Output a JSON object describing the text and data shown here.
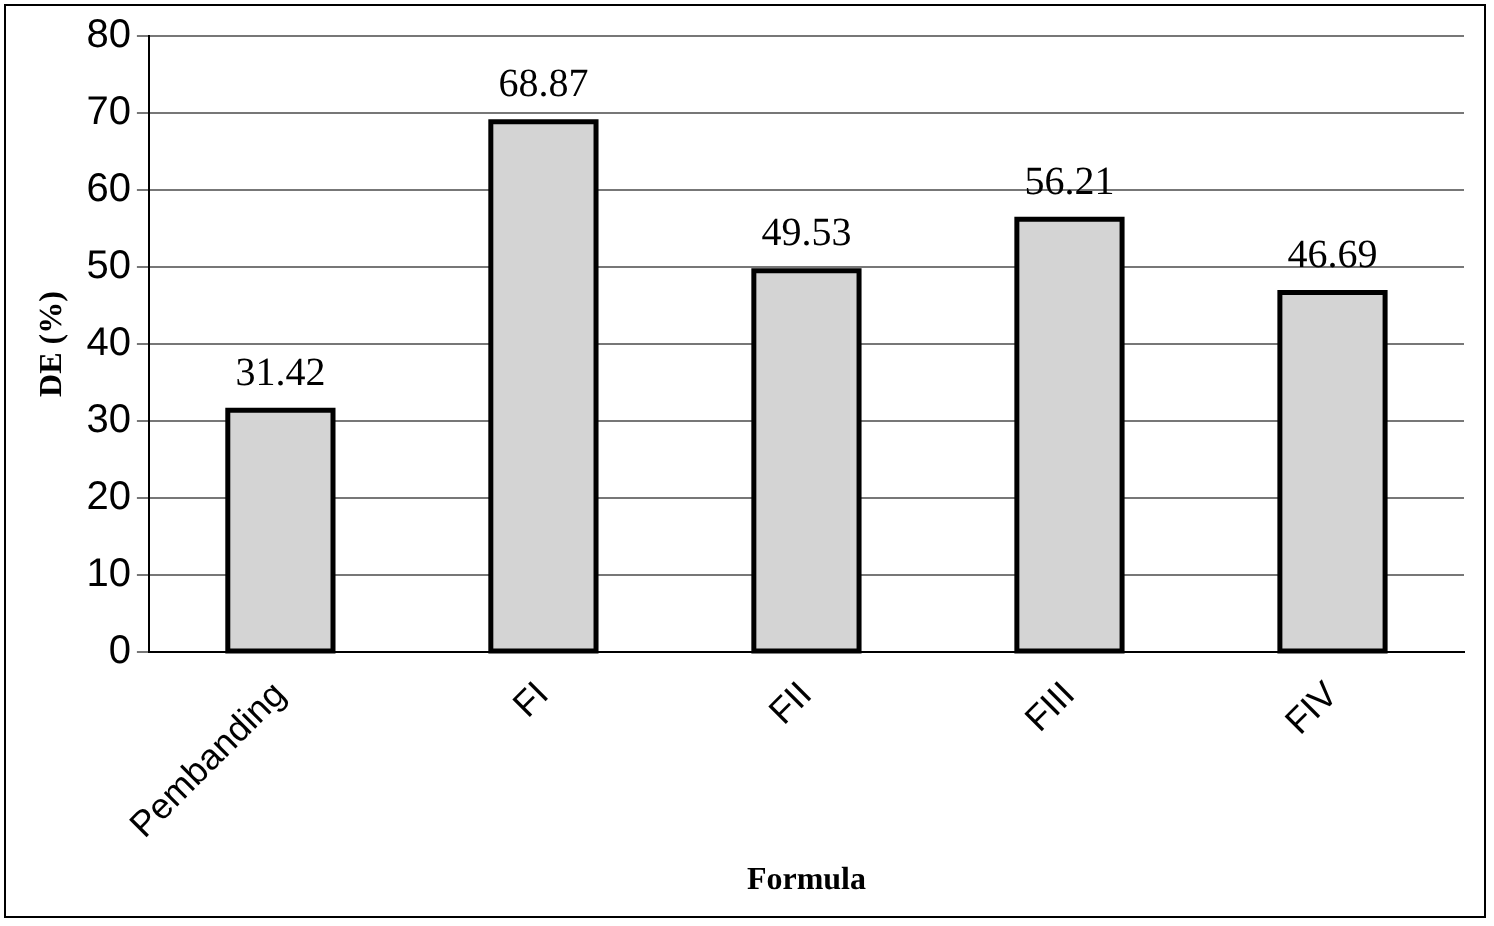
{
  "chart_data": {
    "type": "bar",
    "xlabel": "Formula",
    "ylabel": "DE (%)",
    "categories": [
      "Pembanding",
      "FI",
      "FII",
      "FIII",
      "FIV"
    ],
    "values": [
      31.42,
      68.87,
      49.53,
      56.21,
      46.69
    ],
    "color": "#d4d4d4",
    "ylim": [
      0,
      80
    ],
    "yticks": [
      0,
      10,
      20,
      30,
      40,
      50,
      60,
      70,
      80
    ],
    "grid": "y",
    "data_labels": true
  }
}
